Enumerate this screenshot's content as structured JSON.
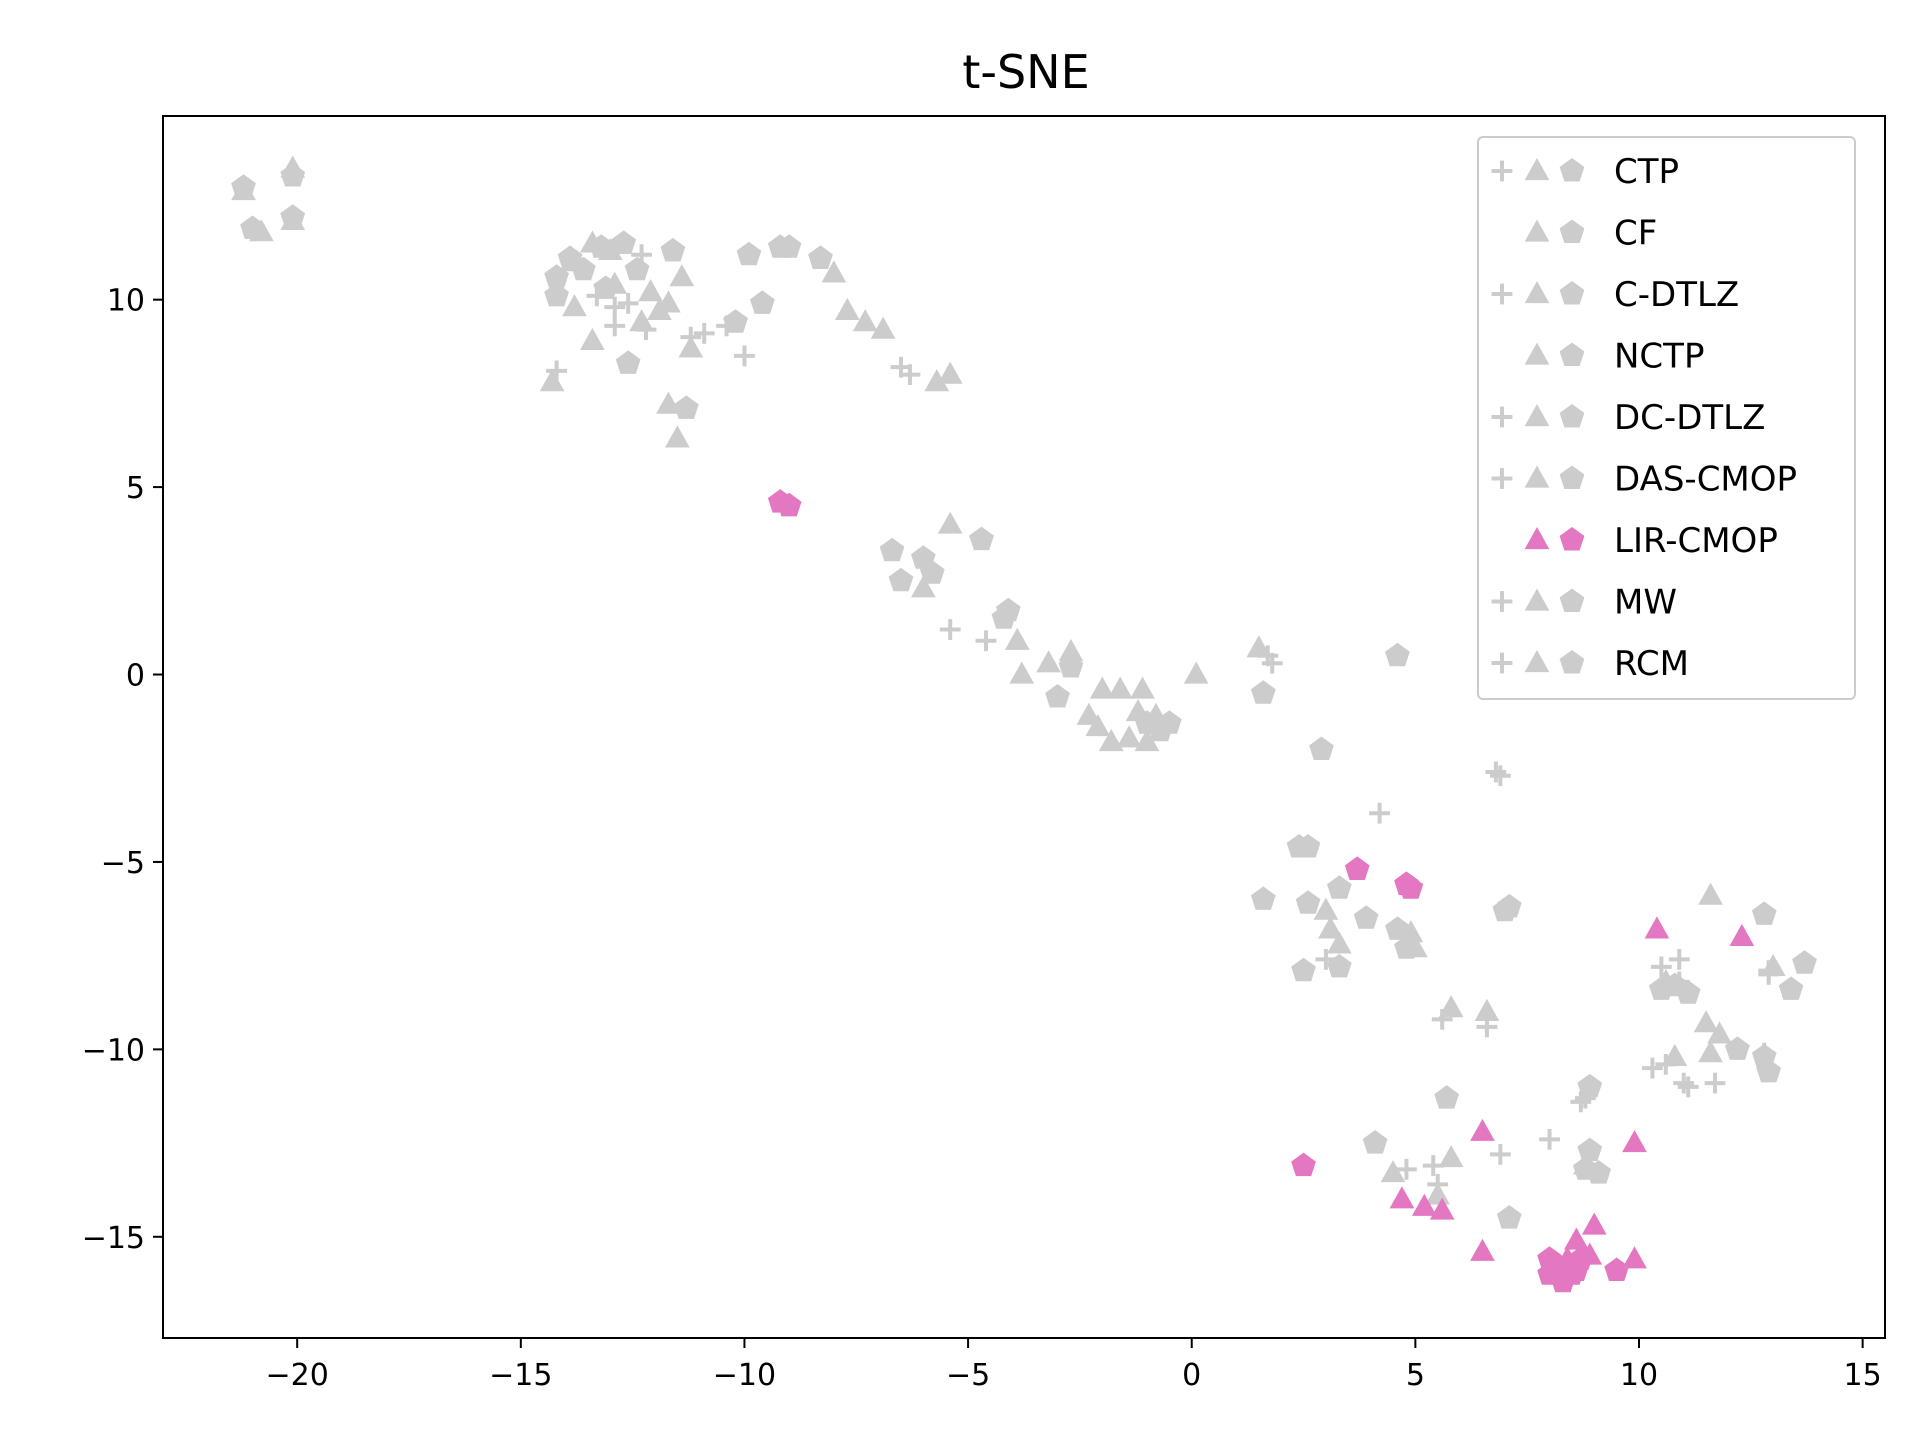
{
  "chart_data": {
    "type": "scatter",
    "title": "t-SNE",
    "xlabel": "",
    "ylabel": "",
    "xlim": [
      -23,
      15.5
    ],
    "ylim": [
      -17.7,
      14.9
    ],
    "xticks": [
      -20,
      -15,
      -10,
      -5,
      0,
      5,
      10,
      15
    ],
    "yticks": [
      -15,
      -10,
      -5,
      0,
      5,
      10
    ],
    "xtick_labels": [
      "−20",
      "−15",
      "−10",
      "−5",
      "0",
      "5",
      "10",
      "15"
    ],
    "ytick_labels": [
      "−15",
      "−10",
      "−5",
      "0",
      "5",
      "10"
    ],
    "grid": false,
    "legend_position": "top-right",
    "colors": {
      "gray": "#cccccc",
      "pink": "#e377c2"
    },
    "series": [
      {
        "name": "CTP",
        "color": "#cccccc",
        "markers": [
          "plus",
          "triangle",
          "pentagon"
        ]
      },
      {
        "name": "CF",
        "color": "#cccccc",
        "markers": [
          "triangle",
          "pentagon"
        ]
      },
      {
        "name": "C-DTLZ",
        "color": "#cccccc",
        "markers": [
          "plus",
          "triangle",
          "pentagon"
        ]
      },
      {
        "name": "NCTP",
        "color": "#cccccc",
        "markers": [
          "triangle",
          "pentagon"
        ]
      },
      {
        "name": "DC-DTLZ",
        "color": "#cccccc",
        "markers": [
          "plus",
          "triangle",
          "pentagon"
        ]
      },
      {
        "name": "DAS-CMOP",
        "color": "#cccccc",
        "markers": [
          "plus",
          "triangle",
          "pentagon"
        ]
      },
      {
        "name": "LIR-CMOP",
        "color": "#e377c2",
        "markers": [
          "triangle",
          "pentagon"
        ]
      },
      {
        "name": "MW",
        "color": "#cccccc",
        "markers": [
          "plus",
          "triangle",
          "pentagon"
        ]
      },
      {
        "name": "RCM",
        "color": "#cccccc",
        "markers": [
          "plus",
          "triangle",
          "pentagon"
        ]
      }
    ],
    "points_gray": [
      [
        "p",
        -21.2,
        13.0
      ],
      [
        "p",
        -20.1,
        13.3
      ],
      [
        "p",
        -21.0,
        11.9
      ],
      [
        "p",
        -20.1,
        12.2
      ],
      [
        "t",
        -21.2,
        12.9
      ],
      [
        "t",
        -20.1,
        13.5
      ],
      [
        "t",
        -20.8,
        11.8
      ],
      [
        "t",
        -20.1,
        12.1
      ],
      [
        "p",
        -14.2,
        10.6
      ],
      [
        "p",
        -13.9,
        11.1
      ],
      [
        "p",
        -13.6,
        10.8
      ],
      [
        "p",
        -13.2,
        11.4
      ],
      [
        "p",
        -12.7,
        11.5
      ],
      [
        "p",
        -14.2,
        10.1
      ],
      [
        "p",
        -13.1,
        10.3
      ],
      [
        "p",
        -12.4,
        10.8
      ],
      [
        "p",
        -11.6,
        11.3
      ],
      [
        "p",
        -12.6,
        8.3
      ],
      [
        "p",
        -11.3,
        7.1
      ],
      [
        "p",
        -10.2,
        9.4
      ],
      [
        "p",
        -9.6,
        9.9
      ],
      [
        "p",
        -9.9,
        11.2
      ],
      [
        "p",
        -9.2,
        11.4
      ],
      [
        "p",
        -9.0,
        11.4
      ],
      [
        "p",
        -8.3,
        11.1
      ],
      [
        "t",
        -13.4,
        11.5
      ],
      [
        "t",
        -13.0,
        11.3
      ],
      [
        "t",
        -13.8,
        9.8
      ],
      [
        "t",
        -13.4,
        8.9
      ],
      [
        "t",
        -12.9,
        10.4
      ],
      [
        "t",
        -12.1,
        10.2
      ],
      [
        "t",
        -11.4,
        10.6
      ],
      [
        "t",
        -11.7,
        9.9
      ],
      [
        "t",
        -12.3,
        9.4
      ],
      [
        "t",
        -11.2,
        8.7
      ],
      [
        "t",
        -11.7,
        7.2
      ],
      [
        "t",
        -11.5,
        6.3
      ],
      [
        "t",
        -14.3,
        7.8
      ],
      [
        "t",
        -8.0,
        10.7
      ],
      [
        "t",
        -7.7,
        9.7
      ],
      [
        "t",
        -7.3,
        9.4
      ],
      [
        "t",
        -6.9,
        9.2
      ],
      [
        "t",
        -5.7,
        7.8
      ],
      [
        "t",
        -5.4,
        8.0
      ],
      [
        "t",
        -13.8,
        11.0
      ],
      [
        "t",
        -11.9,
        9.7
      ],
      [
        "c",
        -14.2,
        8.1
      ],
      [
        "c",
        -12.9,
        9.8
      ],
      [
        "c",
        -12.6,
        9.9
      ],
      [
        "c",
        -12.3,
        11.2
      ],
      [
        "c",
        -12.9,
        9.3
      ],
      [
        "c",
        -12.2,
        9.2
      ],
      [
        "c",
        -11.2,
        9.0
      ],
      [
        "c",
        -10.9,
        9.1
      ],
      [
        "c",
        -10.4,
        9.3
      ],
      [
        "c",
        -10.0,
        8.5
      ],
      [
        "c",
        -6.5,
        8.2
      ],
      [
        "c",
        -6.3,
        8.0
      ],
      [
        "c",
        -13.3,
        10.1
      ],
      [
        "p",
        -6.7,
        3.3
      ],
      [
        "p",
        -6.5,
        2.5
      ],
      [
        "p",
        -6.0,
        3.1
      ],
      [
        "p",
        -5.8,
        2.7
      ],
      [
        "p",
        -4.7,
        3.6
      ],
      [
        "p",
        -4.2,
        1.5
      ],
      [
        "p",
        -4.1,
        1.7
      ],
      [
        "p",
        -3.0,
        -0.6
      ],
      [
        "p",
        -2.7,
        0.2
      ],
      [
        "p",
        -1.0,
        -1.3
      ],
      [
        "p",
        -0.7,
        -1.5
      ],
      [
        "p",
        -0.5,
        -1.3
      ],
      [
        "p",
        1.6,
        -0.5
      ],
      [
        "p",
        2.9,
        -2.0
      ],
      [
        "p",
        4.6,
        0.5
      ],
      [
        "t",
        -5.4,
        4.0
      ],
      [
        "t",
        -6.0,
        2.3
      ],
      [
        "t",
        -3.9,
        0.9
      ],
      [
        "t",
        -3.8,
        0.0
      ],
      [
        "t",
        -3.2,
        0.3
      ],
      [
        "t",
        -2.7,
        0.6
      ],
      [
        "t",
        -2.3,
        -1.1
      ],
      [
        "t",
        -2.0,
        -0.4
      ],
      [
        "t",
        -1.6,
        -0.4
      ],
      [
        "t",
        -1.2,
        -1.0
      ],
      [
        "t",
        -1.1,
        -0.4
      ],
      [
        "t",
        -1.8,
        -1.8
      ],
      [
        "t",
        -1.4,
        -1.7
      ],
      [
        "t",
        -1.0,
        -1.8
      ],
      [
        "t",
        -0.8,
        -1.1
      ],
      [
        "t",
        -2.1,
        -1.4
      ],
      [
        "t",
        0.1,
        0.0
      ],
      [
        "t",
        1.5,
        0.7
      ],
      [
        "c",
        -5.4,
        1.2
      ],
      [
        "c",
        -4.6,
        0.9
      ],
      [
        "c",
        1.7,
        0.5
      ],
      [
        "c",
        1.8,
        0.3
      ],
      [
        "c",
        6.8,
        -2.6
      ],
      [
        "c",
        6.9,
        -2.7
      ],
      [
        "c",
        4.2,
        -3.7
      ],
      [
        "p",
        2.4,
        -4.6
      ],
      [
        "p",
        2.6,
        -4.6
      ],
      [
        "p",
        1.6,
        -6.0
      ],
      [
        "p",
        2.6,
        -6.1
      ],
      [
        "p",
        3.3,
        -5.7
      ],
      [
        "p",
        3.9,
        -6.5
      ],
      [
        "p",
        4.6,
        -6.8
      ],
      [
        "p",
        4.8,
        -7.3
      ],
      [
        "p",
        2.5,
        -7.9
      ],
      [
        "p",
        3.3,
        -7.8
      ],
      [
        "p",
        7.0,
        -6.3
      ],
      [
        "p",
        7.1,
        -6.2
      ],
      [
        "p",
        5.7,
        -11.3
      ],
      [
        "p",
        4.1,
        -12.5
      ],
      [
        "p",
        7.1,
        -14.5
      ],
      [
        "p",
        8.9,
        -11.0
      ],
      [
        "p",
        8.9,
        -12.7
      ],
      [
        "p",
        9.1,
        -13.3
      ],
      [
        "p",
        8.8,
        -13.2
      ],
      [
        "p",
        10.5,
        -8.4
      ],
      [
        "p",
        10.8,
        -8.3
      ],
      [
        "p",
        11.1,
        -8.5
      ],
      [
        "p",
        12.8,
        -6.4
      ],
      [
        "p",
        13.4,
        -8.4
      ],
      [
        "p",
        13.7,
        -7.7
      ],
      [
        "p",
        12.9,
        -10.6
      ],
      [
        "p",
        12.8,
        -10.2
      ],
      [
        "p",
        12.2,
        -10.0
      ],
      [
        "t",
        3.0,
        -6.3
      ],
      [
        "t",
        3.1,
        -6.8
      ],
      [
        "t",
        3.3,
        -7.2
      ],
      [
        "t",
        4.9,
        -6.9
      ],
      [
        "t",
        5.0,
        -7.3
      ],
      [
        "t",
        5.8,
        -8.9
      ],
      [
        "t",
        6.6,
        -9.0
      ],
      [
        "t",
        4.5,
        -13.3
      ],
      [
        "t",
        5.5,
        -13.9
      ],
      [
        "t",
        5.8,
        -12.9
      ],
      [
        "t",
        8.8,
        -13.1
      ],
      [
        "t",
        10.8,
        -10.2
      ],
      [
        "t",
        11.5,
        -9.3
      ],
      [
        "t",
        11.6,
        -10.1
      ],
      [
        "t",
        11.8,
        -9.6
      ],
      [
        "t",
        11.6,
        -5.9
      ],
      [
        "t",
        13.0,
        -7.8
      ],
      [
        "t",
        10.6,
        -8.2
      ],
      [
        "c",
        3.0,
        -7.6
      ],
      [
        "c",
        5.6,
        -9.2
      ],
      [
        "c",
        6.6,
        -9.4
      ],
      [
        "c",
        5.4,
        -13.1
      ],
      [
        "c",
        4.8,
        -13.2
      ],
      [
        "c",
        5.5,
        -13.6
      ],
      [
        "c",
        6.9,
        -12.8
      ],
      [
        "c",
        8.0,
        -12.4
      ],
      [
        "c",
        8.7,
        -11.4
      ],
      [
        "c",
        8.8,
        -11.3
      ],
      [
        "c",
        10.5,
        -7.8
      ],
      [
        "c",
        10.9,
        -7.6
      ],
      [
        "c",
        10.9,
        -8.2
      ],
      [
        "c",
        10.3,
        -10.5
      ],
      [
        "c",
        10.6,
        -10.4
      ],
      [
        "c",
        11.0,
        -10.9
      ],
      [
        "c",
        11.1,
        -11.0
      ],
      [
        "c",
        11.7,
        -10.9
      ],
      [
        "c",
        12.9,
        -7.9
      ],
      [
        "c",
        12.9,
        -8.0
      ],
      [
        "c",
        12.8,
        -10.1
      ]
    ],
    "points_pink": [
      [
        "p",
        -9.2,
        4.6
      ],
      [
        "p",
        -9.0,
        4.5
      ],
      [
        "p",
        3.7,
        -5.2
      ],
      [
        "p",
        4.8,
        -5.6
      ],
      [
        "p",
        4.9,
        -5.7
      ],
      [
        "p",
        2.5,
        -13.1
      ],
      [
        "p",
        8.0,
        -15.6
      ],
      [
        "p",
        8.0,
        -16.0
      ],
      [
        "p",
        8.3,
        -16.2
      ],
      [
        "p",
        8.6,
        -15.9
      ],
      [
        "p",
        8.7,
        -15.6
      ],
      [
        "p",
        8.5,
        -16.0
      ],
      [
        "p",
        9.5,
        -15.9
      ],
      [
        "p",
        8.2,
        -15.8
      ],
      [
        "t",
        4.7,
        -14.0
      ],
      [
        "t",
        5.2,
        -14.2
      ],
      [
        "t",
        5.6,
        -14.3
      ],
      [
        "t",
        6.5,
        -12.2
      ],
      [
        "t",
        6.5,
        -15.4
      ],
      [
        "t",
        8.4,
        -15.6
      ],
      [
        "t",
        8.6,
        -15.1
      ],
      [
        "t",
        9.0,
        -14.7
      ],
      [
        "t",
        9.9,
        -15.6
      ],
      [
        "t",
        9.9,
        -12.5
      ],
      [
        "t",
        10.4,
        -6.8
      ],
      [
        "t",
        12.3,
        -7.0
      ],
      [
        "t",
        8.9,
        -15.5
      ]
    ]
  }
}
